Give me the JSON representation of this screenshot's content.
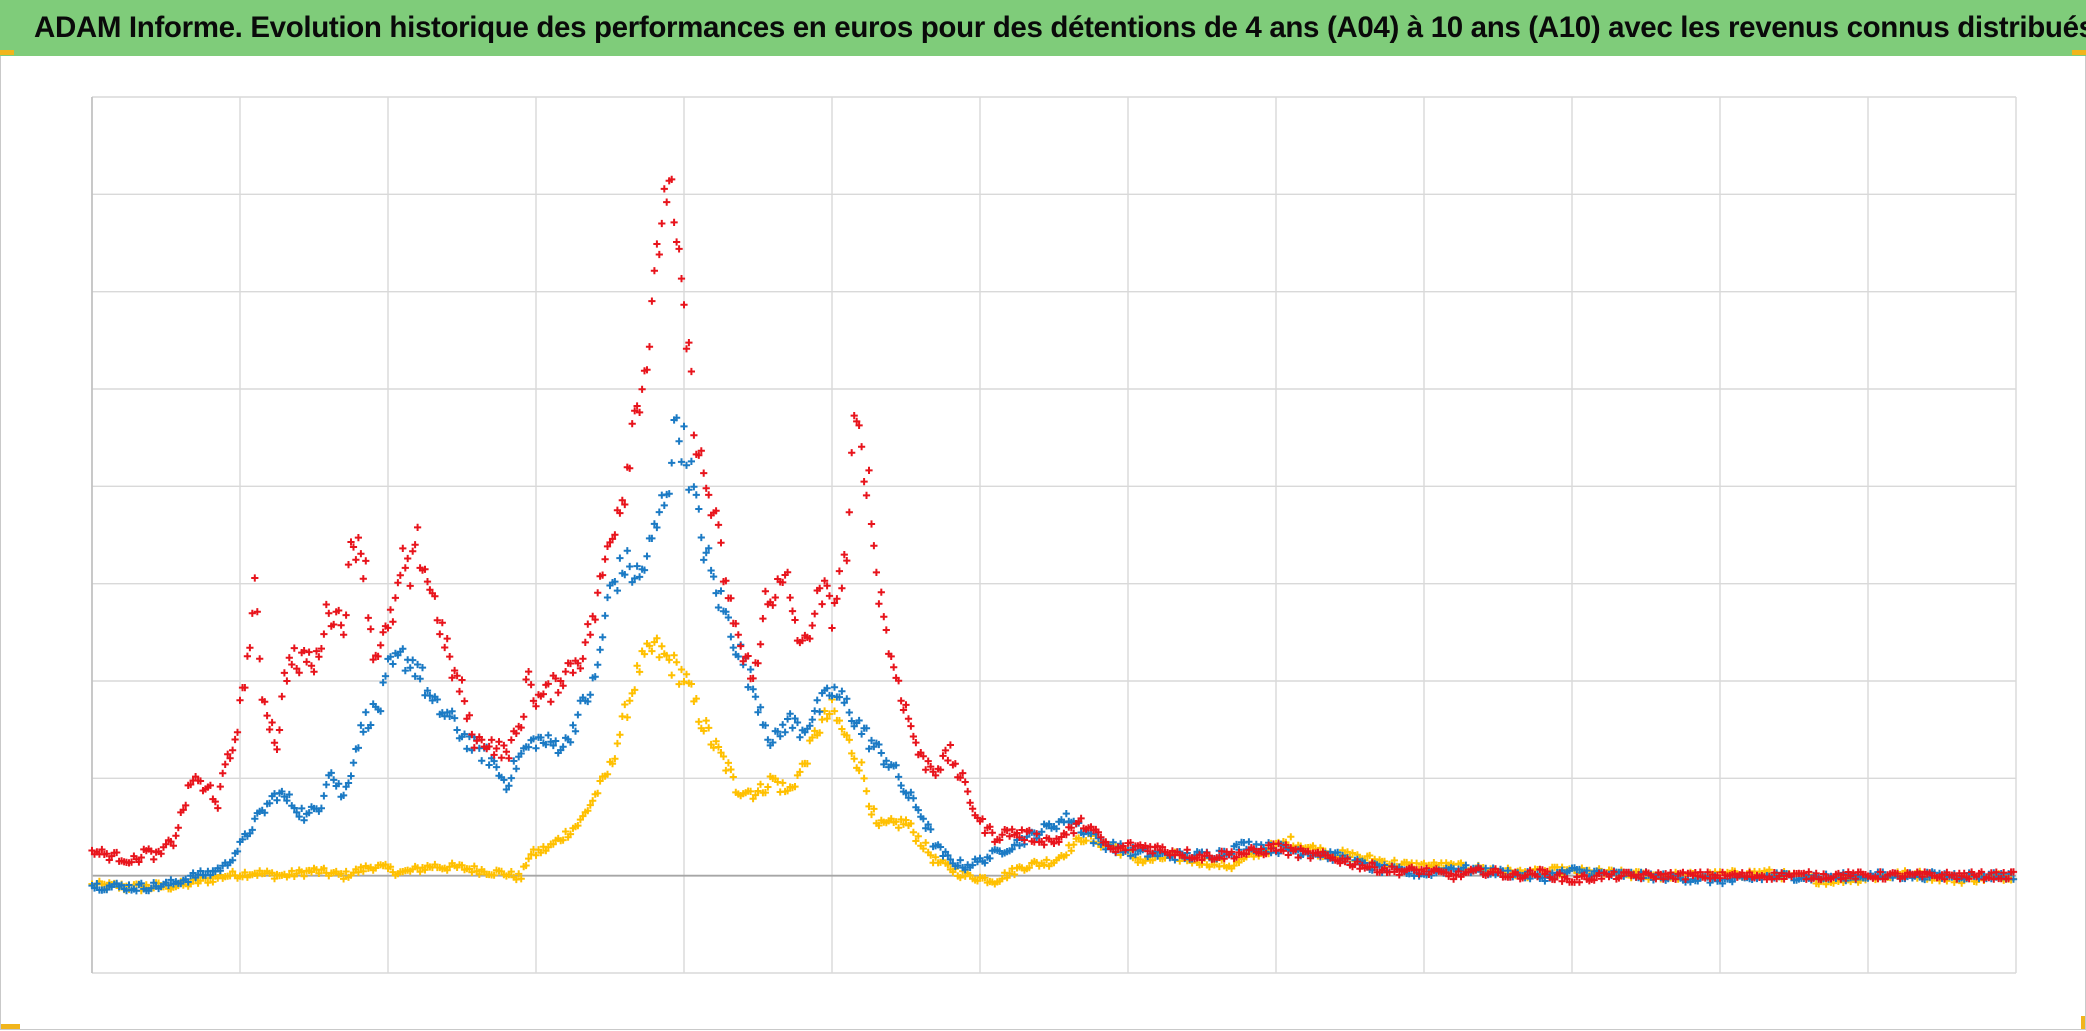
{
  "header": {
    "title": "ADAM Informe. Evolution historique des performances en euros pour des détentions de 4 ans (A04) à 10 ans (A10) avec les revenus connus distribués"
  },
  "colors": {
    "header_bg": "#7fcc7a",
    "corner_accent": "#f1b51c",
    "grid": "#d9d9d9",
    "zero_line": "#a6a6a6"
  },
  "chart_data": {
    "type": "scatter",
    "marker": "plus",
    "title": "",
    "xlabel": "",
    "ylabel": "",
    "xlim": [
      0,
      13
    ],
    "ylim": [
      -1,
      8
    ],
    "grid": true,
    "legend": "none",
    "tick_labels_visible": false,
    "series": [
      {
        "color": "#ffc000",
        "points": [
          [
            0.0,
            -0.1
          ],
          [
            0.3,
            -0.12
          ],
          [
            0.6,
            -0.1
          ],
          [
            0.9,
            0.0
          ],
          [
            1.1,
            0.03
          ],
          [
            1.3,
            0.0
          ],
          [
            1.5,
            0.05
          ],
          [
            1.7,
            0.0
          ],
          [
            1.9,
            0.1
          ],
          [
            2.1,
            0.03
          ],
          [
            2.3,
            0.1
          ],
          [
            2.5,
            0.08
          ],
          [
            2.65,
            0.05
          ],
          [
            2.8,
            0.02
          ],
          [
            2.9,
            -0.02
          ],
          [
            2.95,
            0.2
          ],
          [
            3.1,
            0.3
          ],
          [
            3.3,
            0.55
          ],
          [
            3.5,
            1.1
          ],
          [
            3.6,
            1.65
          ],
          [
            3.7,
            2.15
          ],
          [
            3.8,
            2.35
          ],
          [
            3.9,
            2.2
          ],
          [
            4.0,
            2.05
          ],
          [
            4.1,
            1.65
          ],
          [
            4.2,
            1.35
          ],
          [
            4.3,
            1.1
          ],
          [
            4.35,
            0.9
          ],
          [
            4.5,
            0.85
          ],
          [
            4.6,
            1.0
          ],
          [
            4.7,
            0.85
          ],
          [
            4.8,
            1.1
          ],
          [
            4.9,
            1.5
          ],
          [
            5.0,
            1.7
          ],
          [
            5.1,
            1.4
          ],
          [
            5.2,
            1.1
          ],
          [
            5.3,
            0.5
          ],
          [
            5.5,
            0.55
          ],
          [
            5.6,
            0.35
          ],
          [
            5.7,
            0.15
          ],
          [
            5.9,
            0.0
          ],
          [
            6.1,
            -0.05
          ],
          [
            6.3,
            0.1
          ],
          [
            6.5,
            0.15
          ],
          [
            6.7,
            0.4
          ],
          [
            6.9,
            0.3
          ],
          [
            7.1,
            0.15
          ],
          [
            7.3,
            0.2
          ],
          [
            7.5,
            0.15
          ],
          [
            7.7,
            0.1
          ],
          [
            7.9,
            0.25
          ],
          [
            8.1,
            0.35
          ],
          [
            8.3,
            0.25
          ],
          [
            8.5,
            0.2
          ],
          [
            8.7,
            0.15
          ],
          [
            8.9,
            0.1
          ],
          [
            9.1,
            0.1
          ],
          [
            9.3,
            0.08
          ],
          [
            9.5,
            0.05
          ],
          [
            9.7,
            0.02
          ],
          [
            9.9,
            0.05
          ],
          [
            10.2,
            0.03
          ],
          [
            10.5,
            0.0
          ],
          [
            10.9,
            0.0
          ],
          [
            11.3,
            0.03
          ],
          [
            11.7,
            -0.05
          ],
          [
            12.0,
            -0.02
          ],
          [
            12.3,
            0.02
          ],
          [
            12.6,
            -0.04
          ],
          [
            13.0,
            0.0
          ]
        ]
      },
      {
        "color": "#1b7ac4",
        "points": [
          [
            0.0,
            -0.1
          ],
          [
            0.3,
            -0.12
          ],
          [
            0.5,
            -0.1
          ],
          [
            0.7,
            0.0
          ],
          [
            0.8,
            0.03
          ],
          [
            0.9,
            0.1
          ],
          [
            1.0,
            0.3
          ],
          [
            1.1,
            0.55
          ],
          [
            1.15,
            0.65
          ],
          [
            1.25,
            0.85
          ],
          [
            1.35,
            0.75
          ],
          [
            1.45,
            0.6
          ],
          [
            1.55,
            0.75
          ],
          [
            1.6,
            1.1
          ],
          [
            1.7,
            0.8
          ],
          [
            1.75,
            1.1
          ],
          [
            1.8,
            1.4
          ],
          [
            1.85,
            1.6
          ],
          [
            1.95,
            1.75
          ],
          [
            2.0,
            2.1
          ],
          [
            2.1,
            2.25
          ],
          [
            2.2,
            2.15
          ],
          [
            2.3,
            1.75
          ],
          [
            2.4,
            1.65
          ],
          [
            2.5,
            1.45
          ],
          [
            2.6,
            1.3
          ],
          [
            2.7,
            1.2
          ],
          [
            2.75,
            1.05
          ],
          [
            2.8,
            0.95
          ],
          [
            2.9,
            1.25
          ],
          [
            3.0,
            1.4
          ],
          [
            3.1,
            1.35
          ],
          [
            3.2,
            1.35
          ],
          [
            3.3,
            1.7
          ],
          [
            3.4,
            2.0
          ],
          [
            3.5,
            2.95
          ],
          [
            3.6,
            3.2
          ],
          [
            3.7,
            3.05
          ],
          [
            3.8,
            3.5
          ],
          [
            3.9,
            4.1
          ],
          [
            3.95,
            4.7
          ],
          [
            4.05,
            4.1
          ],
          [
            4.1,
            3.6
          ],
          [
            4.2,
            3.0
          ],
          [
            4.3,
            2.6
          ],
          [
            4.4,
            2.2
          ],
          [
            4.5,
            1.8
          ],
          [
            4.6,
            1.35
          ],
          [
            4.7,
            1.6
          ],
          [
            4.8,
            1.5
          ],
          [
            4.9,
            1.7
          ],
          [
            5.0,
            1.9
          ],
          [
            5.1,
            1.75
          ],
          [
            5.2,
            1.5
          ],
          [
            5.3,
            1.3
          ],
          [
            5.4,
            1.15
          ],
          [
            5.5,
            0.85
          ],
          [
            5.6,
            0.65
          ],
          [
            5.7,
            0.3
          ],
          [
            5.8,
            0.15
          ],
          [
            5.9,
            0.1
          ],
          [
            6.0,
            0.15
          ],
          [
            6.2,
            0.3
          ],
          [
            6.4,
            0.45
          ],
          [
            6.6,
            0.6
          ],
          [
            6.8,
            0.35
          ],
          [
            7.0,
            0.25
          ],
          [
            7.2,
            0.22
          ],
          [
            7.4,
            0.2
          ],
          [
            7.6,
            0.22
          ],
          [
            7.8,
            0.32
          ],
          [
            8.0,
            0.28
          ],
          [
            8.2,
            0.25
          ],
          [
            8.4,
            0.2
          ],
          [
            8.6,
            0.1
          ],
          [
            8.8,
            0.05
          ],
          [
            9.0,
            0.02
          ],
          [
            9.2,
            0.08
          ],
          [
            9.4,
            0.05
          ],
          [
            9.6,
            0.02
          ],
          [
            9.8,
            -0.02
          ],
          [
            10.0,
            0.05
          ],
          [
            10.2,
            0.02
          ],
          [
            10.5,
            0.0
          ],
          [
            10.8,
            -0.03
          ],
          [
            11.1,
            -0.05
          ],
          [
            11.4,
            0.0
          ],
          [
            11.7,
            -0.02
          ],
          [
            12.0,
            0.0
          ],
          [
            12.5,
            0.0
          ],
          [
            13.0,
            0.0
          ]
        ]
      },
      {
        "color": "#e8141c",
        "points": [
          [
            0.0,
            0.25
          ],
          [
            0.15,
            0.2
          ],
          [
            0.3,
            0.15
          ],
          [
            0.35,
            0.25
          ],
          [
            0.45,
            0.2
          ],
          [
            0.5,
            0.3
          ],
          [
            0.55,
            0.35
          ],
          [
            0.6,
            0.6
          ],
          [
            0.65,
            0.85
          ],
          [
            0.7,
            1.05
          ],
          [
            0.75,
            0.85
          ],
          [
            0.8,
            0.9
          ],
          [
            0.85,
            0.75
          ],
          [
            0.9,
            1.1
          ],
          [
            0.95,
            1.3
          ],
          [
            1.0,
            1.7
          ],
          [
            1.05,
            2.2
          ],
          [
            1.1,
            2.9
          ],
          [
            1.15,
            1.9
          ],
          [
            1.2,
            1.6
          ],
          [
            1.25,
            1.35
          ],
          [
            1.3,
            2.0
          ],
          [
            1.35,
            2.3
          ],
          [
            1.4,
            2.1
          ],
          [
            1.45,
            2.3
          ],
          [
            1.5,
            2.1
          ],
          [
            1.55,
            2.45
          ],
          [
            1.6,
            2.75
          ],
          [
            1.7,
            2.6
          ],
          [
            1.75,
            3.3
          ],
          [
            1.8,
            3.5
          ],
          [
            1.85,
            3.1
          ],
          [
            1.9,
            2.25
          ],
          [
            1.95,
            2.4
          ],
          [
            2.0,
            2.5
          ],
          [
            2.05,
            2.8
          ],
          [
            2.1,
            3.2
          ],
          [
            2.15,
            3.05
          ],
          [
            2.2,
            3.4
          ],
          [
            2.3,
            2.9
          ],
          [
            2.35,
            2.6
          ],
          [
            2.4,
            2.3
          ],
          [
            2.45,
            2.05
          ],
          [
            2.5,
            1.9
          ],
          [
            2.55,
            1.55
          ],
          [
            2.6,
            1.35
          ],
          [
            2.65,
            1.4
          ],
          [
            2.7,
            1.35
          ],
          [
            2.75,
            1.3
          ],
          [
            2.8,
            1.25
          ],
          [
            2.9,
            1.55
          ],
          [
            2.95,
            2.1
          ],
          [
            3.0,
            1.8
          ],
          [
            3.1,
            1.9
          ],
          [
            3.2,
            2.1
          ],
          [
            3.3,
            2.25
          ],
          [
            3.4,
            2.7
          ],
          [
            3.5,
            3.5
          ],
          [
            3.6,
            4.0
          ],
          [
            3.65,
            4.6
          ],
          [
            3.7,
            5.0
          ],
          [
            3.75,
            5.3
          ],
          [
            3.8,
            6.0
          ],
          [
            3.85,
            6.8
          ],
          [
            3.9,
            7.2
          ],
          [
            3.95,
            6.4
          ],
          [
            4.0,
            5.8
          ],
          [
            4.05,
            5.0
          ],
          [
            4.1,
            4.3
          ],
          [
            4.15,
            4.0
          ],
          [
            4.2,
            3.7
          ],
          [
            4.25,
            3.3
          ],
          [
            4.3,
            2.8
          ],
          [
            4.35,
            2.6
          ],
          [
            4.4,
            2.2
          ],
          [
            4.5,
            2.1
          ],
          [
            4.55,
            2.9
          ],
          [
            4.6,
            2.9
          ],
          [
            4.7,
            3.0
          ],
          [
            4.75,
            2.6
          ],
          [
            4.8,
            2.3
          ],
          [
            4.9,
            2.8
          ],
          [
            4.95,
            2.9
          ],
          [
            5.0,
            2.7
          ],
          [
            5.05,
            3.0
          ],
          [
            5.1,
            3.3
          ],
          [
            5.15,
            4.6
          ],
          [
            5.2,
            4.4
          ],
          [
            5.25,
            4.0
          ],
          [
            5.3,
            3.1
          ],
          [
            5.35,
            2.7
          ],
          [
            5.4,
            2.2
          ],
          [
            5.45,
            2.0
          ],
          [
            5.5,
            1.7
          ],
          [
            5.6,
            1.2
          ],
          [
            5.7,
            1.1
          ],
          [
            5.8,
            1.25
          ],
          [
            5.9,
            0.9
          ],
          [
            6.0,
            0.55
          ],
          [
            6.1,
            0.4
          ],
          [
            6.2,
            0.45
          ],
          [
            6.35,
            0.4
          ],
          [
            6.5,
            0.35
          ],
          [
            6.6,
            0.45
          ],
          [
            6.7,
            0.55
          ],
          [
            6.8,
            0.4
          ],
          [
            6.9,
            0.25
          ],
          [
            7.0,
            0.3
          ],
          [
            7.1,
            0.3
          ],
          [
            7.3,
            0.25
          ],
          [
            7.5,
            0.2
          ],
          [
            7.7,
            0.22
          ],
          [
            7.9,
            0.25
          ],
          [
            8.0,
            0.3
          ],
          [
            8.1,
            0.25
          ],
          [
            8.2,
            0.22
          ],
          [
            8.4,
            0.18
          ],
          [
            8.6,
            0.1
          ],
          [
            8.8,
            0.05
          ],
          [
            9.0,
            0.05
          ],
          [
            9.2,
            0.0
          ],
          [
            9.4,
            0.05
          ],
          [
            9.6,
            0.0
          ],
          [
            9.8,
            0.03
          ],
          [
            10.0,
            -0.05
          ],
          [
            10.2,
            0.0
          ],
          [
            10.5,
            0.0
          ],
          [
            10.8,
            0.0
          ],
          [
            11.1,
            0.0
          ],
          [
            11.4,
            0.0
          ],
          [
            11.7,
            0.0
          ],
          [
            12.0,
            0.0
          ],
          [
            12.5,
            0.0
          ],
          [
            13.0,
            0.0
          ]
        ]
      }
    ]
  }
}
